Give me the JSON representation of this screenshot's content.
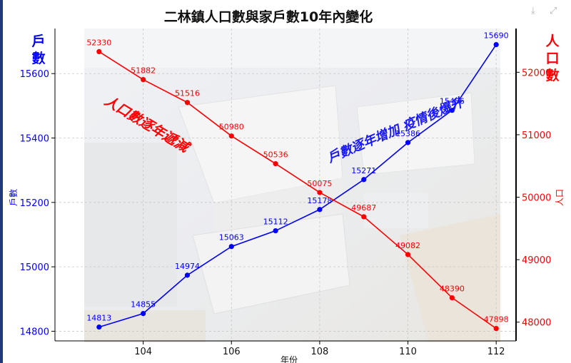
{
  "toolbar": {
    "download_icon": "⤓",
    "expand_icon": "⤢"
  },
  "chart_data": {
    "type": "line",
    "title": "二林鎮人口數與家戶數10年內變化",
    "xlabel": "年份",
    "x": [
      103,
      104,
      105,
      106,
      107,
      108,
      109,
      110,
      111,
      112
    ],
    "xticks": [
      104,
      106,
      108,
      110,
      112
    ],
    "xlim": [
      102.0,
      112.45
    ],
    "series": [
      {
        "name": "戶數",
        "axis": "left",
        "color": "#0000ff",
        "values": [
          14813,
          14855,
          14974,
          15063,
          15112,
          15178,
          15271,
          15386,
          15486,
          15690
        ]
      },
      {
        "name": "人口數",
        "axis": "right",
        "color": "#ff0000",
        "values": [
          52330,
          51882,
          51516,
          50980,
          50536,
          50075,
          49687,
          49082,
          48390,
          47898
        ]
      }
    ],
    "left_axis": {
      "label": "戶數",
      "side_label": "戶數",
      "color": "#0000ff",
      "ylim": [
        14770,
        15740
      ],
      "ticks": [
        14800,
        15000,
        15200,
        15400,
        15600
      ]
    },
    "right_axis": {
      "label": "人口",
      "side_label": "人口數",
      "color": "#ff0000",
      "ylim": [
        47700,
        52700
      ],
      "ticks": [
        48000,
        49000,
        50000,
        51000,
        52000
      ]
    },
    "annotations": [
      {
        "text": "人口數逐年遞減",
        "color": "#ff0000"
      },
      {
        "text": "戶數逐年增加 疫情後爆升",
        "color": "#1a1aff"
      }
    ],
    "grid": true
  }
}
